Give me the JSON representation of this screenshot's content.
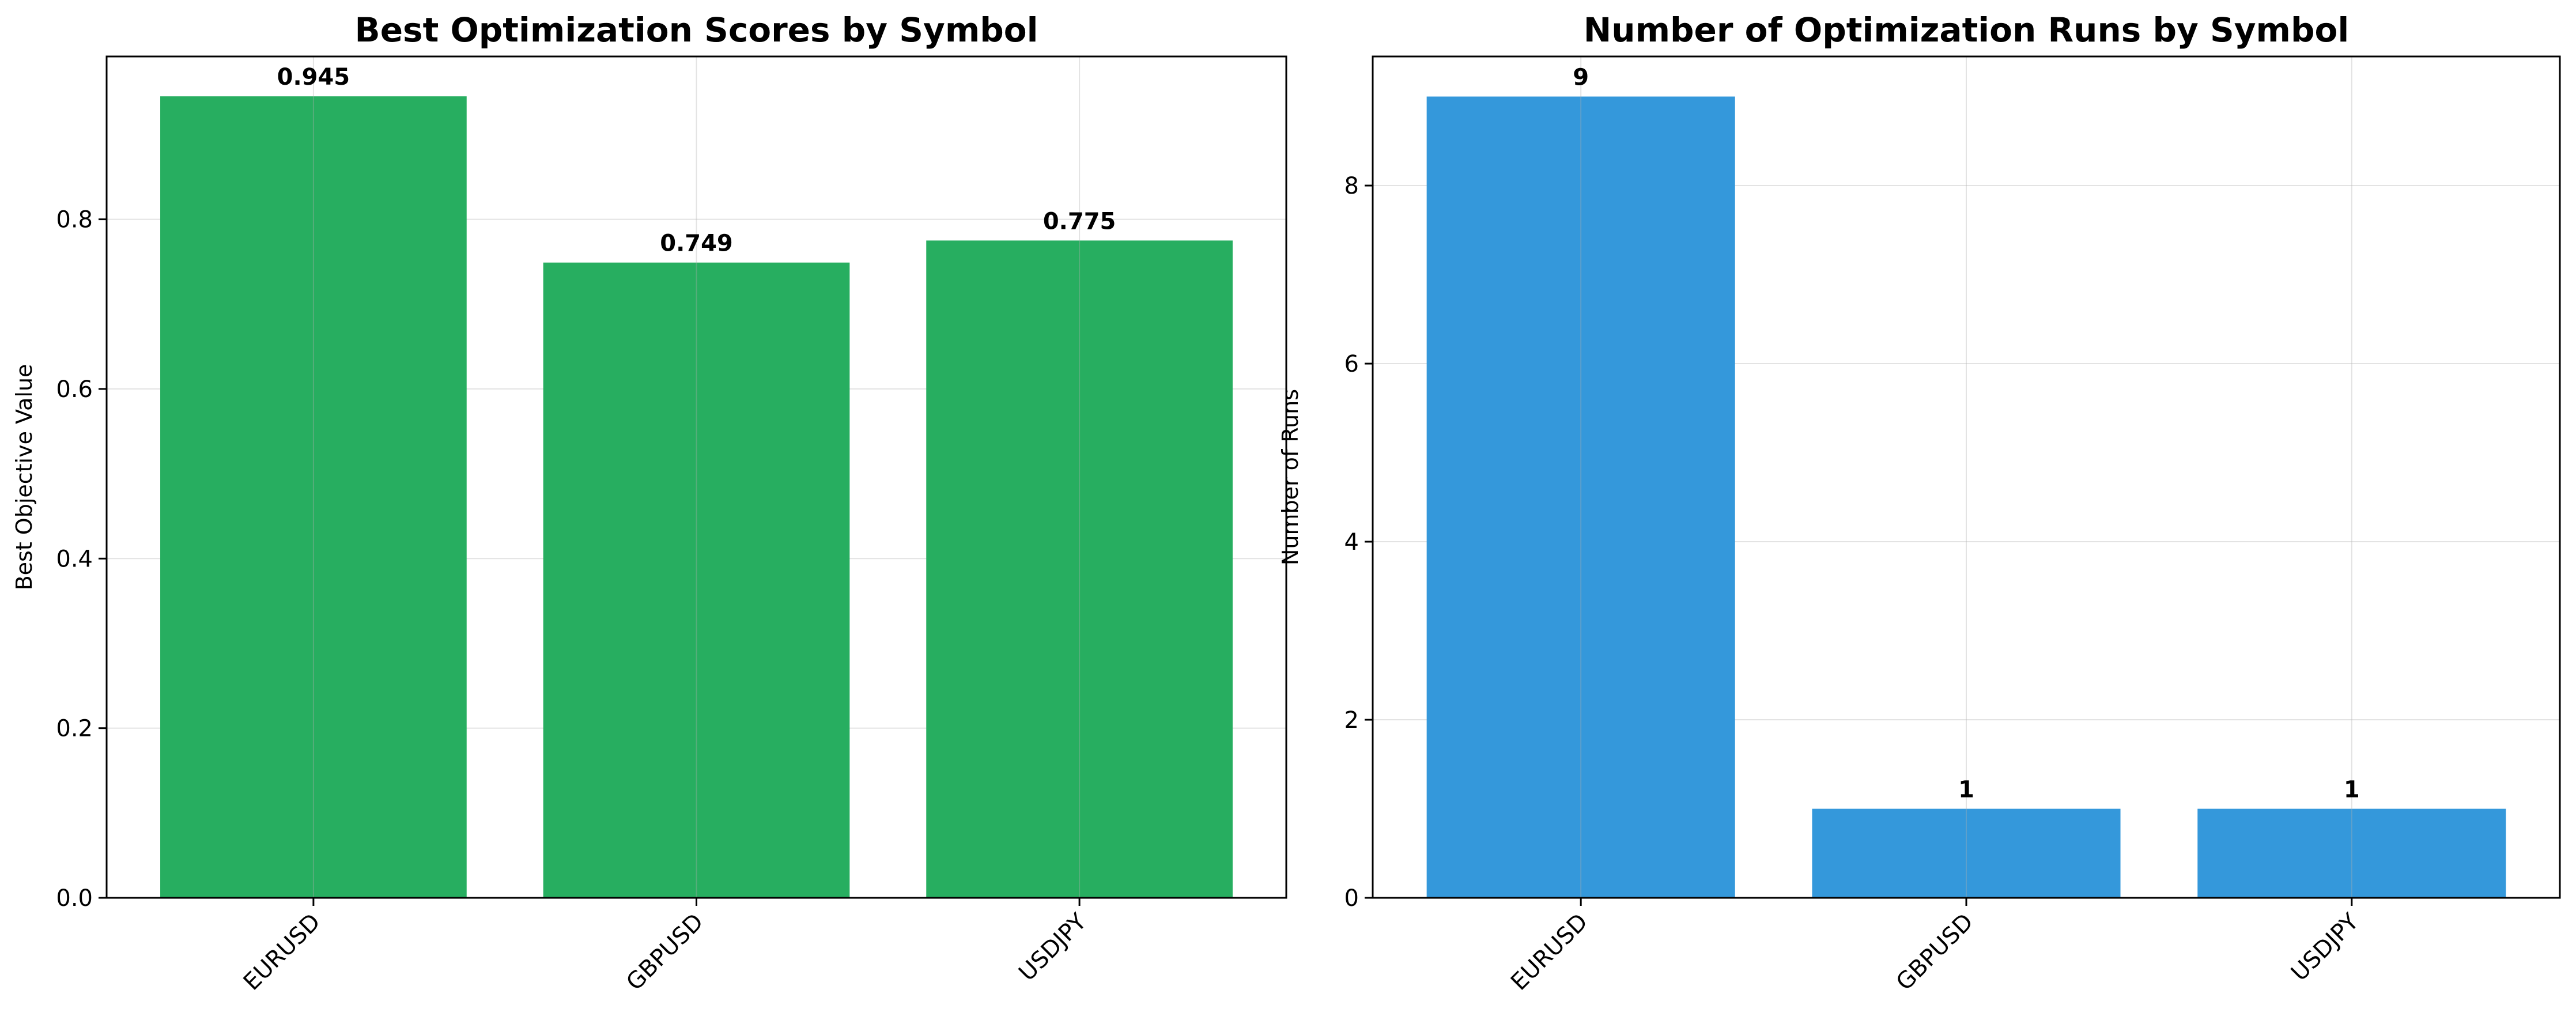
{
  "chart_data": [
    {
      "type": "bar",
      "title": "Best Optimization Scores by Symbol",
      "xlabel": "",
      "ylabel": "Best Objective Value",
      "categories": [
        "EURUSD",
        "GBPUSD",
        "USDJPY"
      ],
      "values": [
        0.945,
        0.749,
        0.775
      ],
      "value_labels": [
        "0.945",
        "0.749",
        "0.775"
      ],
      "ylim": [
        0,
        0.992
      ],
      "yticks": [
        0.0,
        0.2,
        0.4,
        0.6,
        0.8
      ],
      "ytick_labels": [
        "0.0",
        "0.2",
        "0.4",
        "0.6",
        "0.8"
      ],
      "grid": true,
      "color": "#27ae60"
    },
    {
      "type": "bar",
      "title": "Number of Optimization Runs by Symbol",
      "xlabel": "",
      "ylabel": "Number of Runs",
      "categories": [
        "EURUSD",
        "GBPUSD",
        "USDJPY"
      ],
      "values": [
        9,
        1,
        1
      ],
      "value_labels": [
        "9",
        "1",
        "1"
      ],
      "ylim": [
        0,
        9.45
      ],
      "yticks": [
        0,
        2,
        4,
        6,
        8
      ],
      "ytick_labels": [
        "0",
        "2",
        "4",
        "6",
        "8"
      ],
      "grid": true,
      "color": "#3498db"
    }
  ]
}
